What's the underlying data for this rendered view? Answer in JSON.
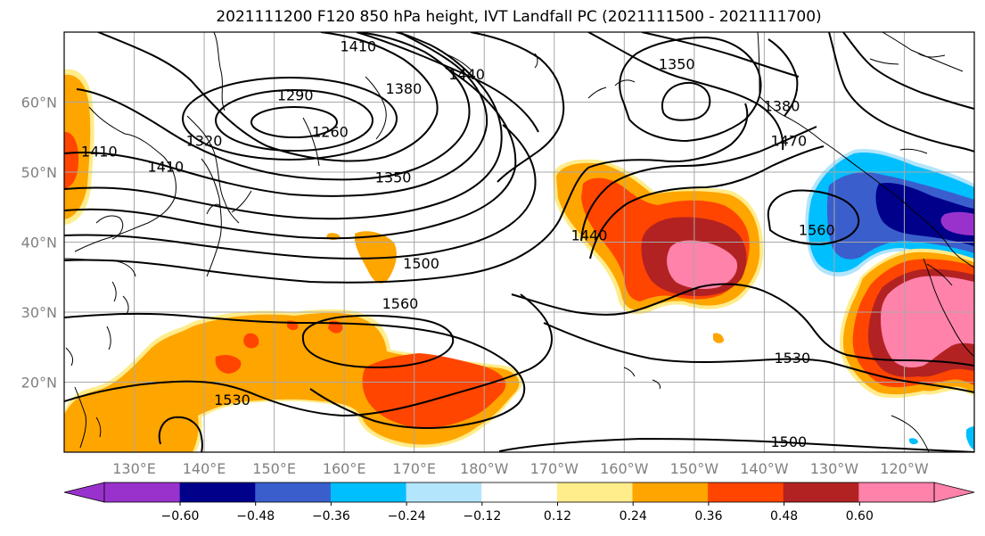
{
  "title": "2021111200 F120 850 hPa height, IVT Landfall PC (2021111500 - 2021111700)",
  "map": {
    "lon_range": [
      120,
      250
    ],
    "lat_range": [
      10,
      70
    ],
    "x_ticks": [
      {
        "lon": 130,
        "label": "130°E"
      },
      {
        "lon": 140,
        "label": "140°E"
      },
      {
        "lon": 150,
        "label": "150°E"
      },
      {
        "lon": 160,
        "label": "160°E"
      },
      {
        "lon": 170,
        "label": "170°E"
      },
      {
        "lon": 180,
        "label": "180°W"
      },
      {
        "lon": 190,
        "label": "170°W"
      },
      {
        "lon": 200,
        "label": "160°W"
      },
      {
        "lon": 210,
        "label": "150°W"
      },
      {
        "lon": 220,
        "label": "140°W"
      },
      {
        "lon": 230,
        "label": "130°W"
      },
      {
        "lon": 240,
        "label": "120°W"
      }
    ],
    "y_ticks": [
      {
        "lat": 20,
        "label": "20°N"
      },
      {
        "lat": 30,
        "label": "30°N"
      },
      {
        "lat": 40,
        "label": "40°N"
      },
      {
        "lat": 50,
        "label": "50°N"
      },
      {
        "lat": 60,
        "label": "60°N"
      }
    ],
    "grid": true,
    "contour_labels": [
      {
        "text": "1410",
        "lon": 162,
        "lat": 68
      },
      {
        "text": "1440",
        "lon": 177.5,
        "lat": 64
      },
      {
        "text": "1380",
        "lon": 168.5,
        "lat": 62
      },
      {
        "text": "1290",
        "lon": 153,
        "lat": 61
      },
      {
        "text": "1320",
        "lon": 140,
        "lat": 54.5
      },
      {
        "text": "1260",
        "lon": 158,
        "lat": 55.8
      },
      {
        "text": "1350",
        "lon": 167,
        "lat": 49.3
      },
      {
        "text": "1410",
        "lon": 134.5,
        "lat": 50.8
      },
      {
        "text": "1410",
        "lon": 125,
        "lat": 53
      },
      {
        "text": "1500",
        "lon": 171,
        "lat": 37
      },
      {
        "text": "1560",
        "lon": 168,
        "lat": 31.3
      },
      {
        "text": "1530",
        "lon": 144,
        "lat": 17.5
      },
      {
        "text": "1440",
        "lon": 195,
        "lat": 41
      },
      {
        "text": "1350",
        "lon": 207.5,
        "lat": 65.5
      },
      {
        "text": "1380",
        "lon": 222.5,
        "lat": 59.5
      },
      {
        "text": "1470",
        "lon": 223.5,
        "lat": 54.5
      },
      {
        "text": "1560",
        "lon": 227.5,
        "lat": 41.8
      },
      {
        "text": "1530",
        "lon": 224,
        "lat": 23.5
      },
      {
        "text": "1500",
        "lon": 223.5,
        "lat": 11.5
      }
    ]
  },
  "colorbar": {
    "ticks": [
      "−0.60",
      "−0.48",
      "−0.36",
      "−0.24",
      "−0.12",
      "0.12",
      "0.24",
      "0.36",
      "0.48",
      "0.60"
    ],
    "colors": [
      "#9932cc",
      "#00008b",
      "#3a5fcd",
      "#00bfff",
      "#b3e5fc",
      "#ffffff",
      "#ffec8b",
      "#ffa500",
      "#ff4500",
      "#b22222",
      "#ff82ab",
      "#ff82ab"
    ]
  }
}
